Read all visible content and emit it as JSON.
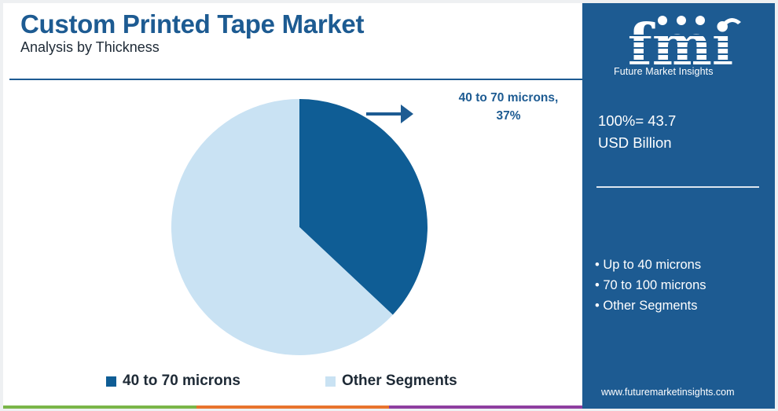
{
  "header": {
    "title": "Custom Printed Tape Market",
    "subtitle": "Analysis by Thickness"
  },
  "colors": {
    "primary": "#1d5b92",
    "segment_main": "#0f5d95",
    "segment_other": "#c9e2f3",
    "footer": [
      "#7ab648",
      "#e8742e",
      "#8e3ea0",
      "#1d5b92"
    ]
  },
  "chart_data": {
    "type": "pie",
    "title": "Custom Printed Tape Market",
    "subtitle": "Analysis by Thickness",
    "slices": [
      {
        "label": "40 to 70 microns",
        "value": 37,
        "color": "#0f5d95"
      },
      {
        "label": "Other Segments",
        "value": 63,
        "color": "#c9e2f3"
      }
    ],
    "annotation": {
      "line1": "40 to 70 microns,",
      "line2": "37%"
    },
    "legend": [
      "40 to 70 microns",
      "Other Segments"
    ],
    "legend_position": "bottom"
  },
  "sidebar": {
    "logo_text": "fmi",
    "logo_tagline": "Future Market Insights",
    "total_line1": "100%= 43.7",
    "total_line2": "USD Billion",
    "other_segments": [
      "Up to 40 microns",
      "70 to 100 microns",
      "Other Segments"
    ],
    "website": "www.futuremarketinsights.com"
  }
}
